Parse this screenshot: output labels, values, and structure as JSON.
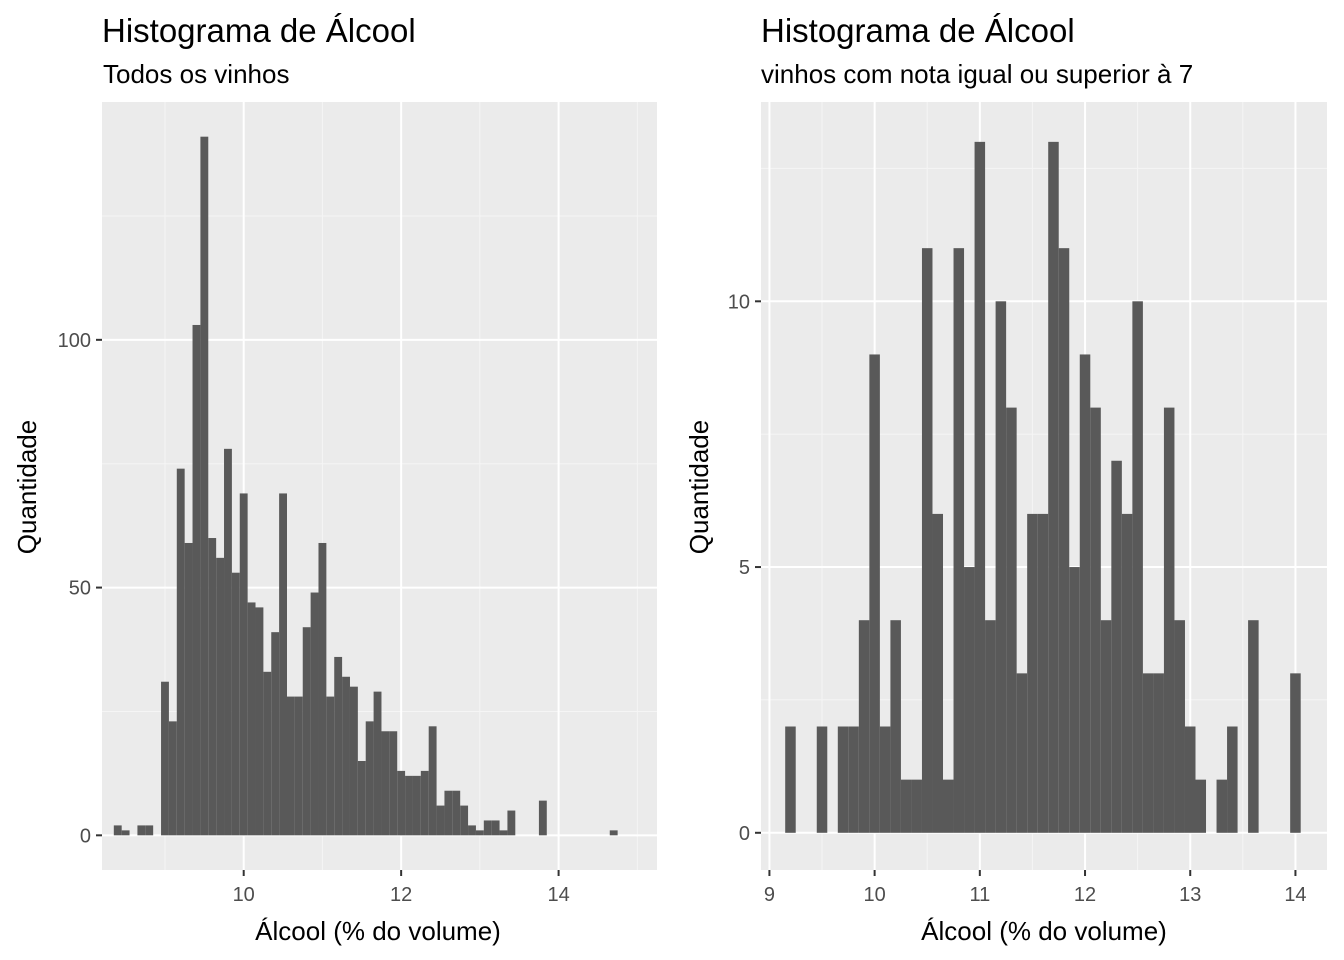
{
  "chart_data": [
    {
      "type": "bar",
      "title": "Histograma de Álcool",
      "subtitle": "Todos os vinhos",
      "xlabel": "Álcool (% do volume)",
      "ylabel": "Quantidade",
      "xlim": [
        8.2,
        15.25
      ],
      "ylim": [
        -7,
        148
      ],
      "xticks": [
        10,
        12,
        14
      ],
      "yticks": [
        0,
        50,
        100
      ],
      "grid": true,
      "bin_width": 0.1,
      "bins": [
        {
          "x": 8.4,
          "y": 2
        },
        {
          "x": 8.5,
          "y": 1
        },
        {
          "x": 8.7,
          "y": 2
        },
        {
          "x": 8.8,
          "y": 2
        },
        {
          "x": 9.0,
          "y": 31
        },
        {
          "x": 9.1,
          "y": 23
        },
        {
          "x": 9.2,
          "y": 74
        },
        {
          "x": 9.3,
          "y": 59
        },
        {
          "x": 9.4,
          "y": 103
        },
        {
          "x": 9.5,
          "y": 141
        },
        {
          "x": 9.6,
          "y": 60
        },
        {
          "x": 9.7,
          "y": 56
        },
        {
          "x": 9.8,
          "y": 78
        },
        {
          "x": 9.9,
          "y": 53
        },
        {
          "x": 10.0,
          "y": 69
        },
        {
          "x": 10.1,
          "y": 47
        },
        {
          "x": 10.2,
          "y": 46
        },
        {
          "x": 10.3,
          "y": 33
        },
        {
          "x": 10.4,
          "y": 41
        },
        {
          "x": 10.5,
          "y": 69
        },
        {
          "x": 10.6,
          "y": 28
        },
        {
          "x": 10.7,
          "y": 28
        },
        {
          "x": 10.8,
          "y": 42
        },
        {
          "x": 10.9,
          "y": 49
        },
        {
          "x": 11.0,
          "y": 59
        },
        {
          "x": 11.1,
          "y": 28
        },
        {
          "x": 11.2,
          "y": 36
        },
        {
          "x": 11.3,
          "y": 32
        },
        {
          "x": 11.4,
          "y": 30
        },
        {
          "x": 11.5,
          "y": 15
        },
        {
          "x": 11.6,
          "y": 23
        },
        {
          "x": 11.7,
          "y": 29
        },
        {
          "x": 11.8,
          "y": 21
        },
        {
          "x": 11.9,
          "y": 21
        },
        {
          "x": 12.0,
          "y": 13
        },
        {
          "x": 12.1,
          "y": 12
        },
        {
          "x": 12.2,
          "y": 12
        },
        {
          "x": 12.3,
          "y": 13
        },
        {
          "x": 12.4,
          "y": 22
        },
        {
          "x": 12.5,
          "y": 6
        },
        {
          "x": 12.6,
          "y": 9
        },
        {
          "x": 12.7,
          "y": 9
        },
        {
          "x": 12.8,
          "y": 6
        },
        {
          "x": 12.9,
          "y": 2
        },
        {
          "x": 13.0,
          "y": 1
        },
        {
          "x": 13.1,
          "y": 3
        },
        {
          "x": 13.2,
          "y": 3
        },
        {
          "x": 13.3,
          "y": 1
        },
        {
          "x": 13.4,
          "y": 5
        },
        {
          "x": 13.8,
          "y": 7
        },
        {
          "x": 14.7,
          "y": 1
        }
      ]
    },
    {
      "type": "bar",
      "title": "Histograma de Álcool",
      "subtitle": "vinhos com nota igual ou superior à 7",
      "xlabel": "Álcool (% do volume)",
      "ylabel": "Quantidade",
      "xlim": [
        8.92,
        14.3
      ],
      "ylim": [
        -0.7,
        13.75
      ],
      "xticks": [
        9,
        10,
        11,
        12,
        13,
        14
      ],
      "yticks": [
        0,
        5,
        10
      ],
      "grid": true,
      "bin_width": 0.1,
      "bins": [
        {
          "x": 9.2,
          "y": 2
        },
        {
          "x": 9.5,
          "y": 2
        },
        {
          "x": 9.7,
          "y": 2
        },
        {
          "x": 9.8,
          "y": 2
        },
        {
          "x": 9.9,
          "y": 4
        },
        {
          "x": 10.0,
          "y": 9
        },
        {
          "x": 10.1,
          "y": 2
        },
        {
          "x": 10.2,
          "y": 4
        },
        {
          "x": 10.3,
          "y": 1
        },
        {
          "x": 10.4,
          "y": 1
        },
        {
          "x": 10.5,
          "y": 11
        },
        {
          "x": 10.6,
          "y": 6
        },
        {
          "x": 10.7,
          "y": 1
        },
        {
          "x": 10.8,
          "y": 11
        },
        {
          "x": 10.9,
          "y": 5
        },
        {
          "x": 11.0,
          "y": 13
        },
        {
          "x": 11.1,
          "y": 4
        },
        {
          "x": 11.2,
          "y": 10
        },
        {
          "x": 11.3,
          "y": 8
        },
        {
          "x": 11.4,
          "y": 3
        },
        {
          "x": 11.5,
          "y": 6
        },
        {
          "x": 11.6,
          "y": 6
        },
        {
          "x": 11.7,
          "y": 13
        },
        {
          "x": 11.8,
          "y": 11
        },
        {
          "x": 11.9,
          "y": 5
        },
        {
          "x": 12.0,
          "y": 9
        },
        {
          "x": 12.1,
          "y": 8
        },
        {
          "x": 12.2,
          "y": 4
        },
        {
          "x": 12.3,
          "y": 7
        },
        {
          "x": 12.4,
          "y": 6
        },
        {
          "x": 12.5,
          "y": 10
        },
        {
          "x": 12.6,
          "y": 3
        },
        {
          "x": 12.7,
          "y": 3
        },
        {
          "x": 12.8,
          "y": 8
        },
        {
          "x": 12.9,
          "y": 4
        },
        {
          "x": 13.0,
          "y": 2
        },
        {
          "x": 13.1,
          "y": 1
        },
        {
          "x": 13.3,
          "y": 1
        },
        {
          "x": 13.4,
          "y": 2
        },
        {
          "x": 13.6,
          "y": 4
        },
        {
          "x": 14.0,
          "y": 3
        }
      ]
    }
  ],
  "colors": {
    "panel_background": "#ebebeb",
    "grid_major": "#ffffff",
    "grid_minor": "#f5f5f5",
    "bar_fill": "#595959",
    "tick_text": "#4d4d4d"
  }
}
